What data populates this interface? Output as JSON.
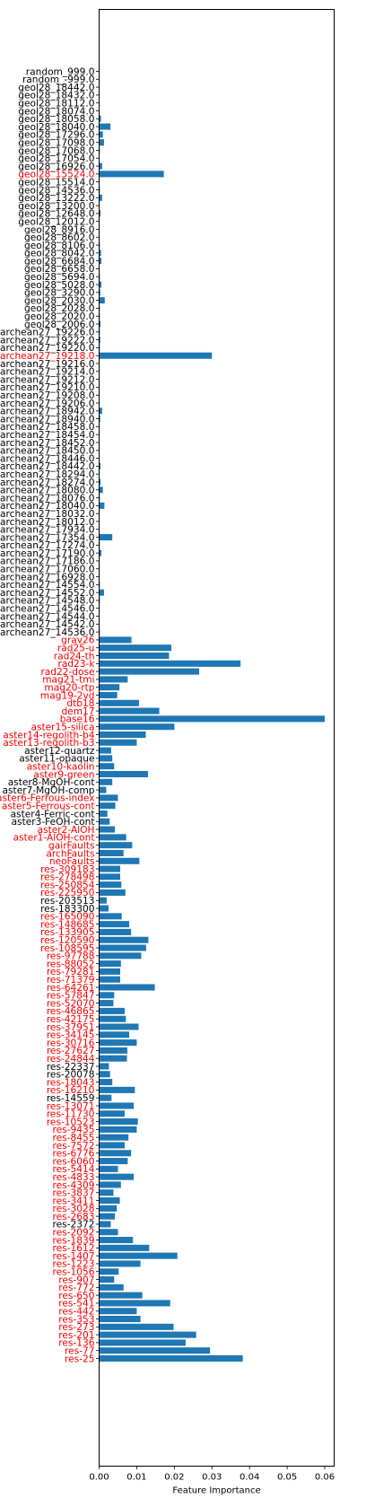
{
  "chart_data": {
    "type": "bar",
    "orientation": "horizontal",
    "title": "",
    "xlabel": "Feature Importance",
    "ylabel": "",
    "xlim": [
      0,
      0.0625
    ],
    "x_ticks": [
      0.0,
      0.01,
      0.02,
      0.03,
      0.04,
      0.05,
      0.06
    ],
    "x_tick_labels": [
      "0.00",
      "0.01",
      "0.02",
      "0.03",
      "0.04",
      "0.05",
      "0.06"
    ],
    "grid": false,
    "bar_color": "#1f77b4",
    "highlight_label_color": "#ff0000",
    "normal_label_color": "#000000",
    "categories": [
      "res-25",
      "res-77",
      "res-136",
      "res-201",
      "res-273",
      "res-353",
      "res-442",
      "res-541",
      "res-650",
      "res-772",
      "res-907",
      "res-1056",
      "res-1223",
      "res-1407",
      "res-1612",
      "res-1839",
      "res-2092",
      "res-2372",
      "res-2683",
      "res-3028",
      "res-3411",
      "res-3837",
      "res-4309",
      "res-4833",
      "res-5414",
      "res-6060",
      "res-6776",
      "res-7572",
      "res-8455",
      "res-9435",
      "res-10523",
      "res-11730",
      "res-13071",
      "res-14559",
      "res-16210",
      "res-18043",
      "res-20078",
      "res-22337",
      "res-24844",
      "res-27627",
      "res-30716",
      "res-34145",
      "res-37951",
      "res-42175",
      "res-46865",
      "res-52070",
      "res-57847",
      "res-64261",
      "res-71379",
      "res-79281",
      "res-88052",
      "res-97788",
      "res-108595",
      "res-120590",
      "res-133905",
      "res-148685",
      "res-165090",
      "res-183300",
      "res-203513",
      "res-225950",
      "res-250854",
      "res-278498",
      "res-309183",
      "neoFaults",
      "archFaults",
      "gairFaults",
      "aster1-AlOH-cont",
      "aster2-AlOH",
      "aster3-FeOH-cont",
      "aster4-Ferric-cont",
      "aster5-Ferrous-cont",
      "aster6-Ferrous-index",
      "aster7-MgOH-comp",
      "aster8-MgOH-cont",
      "aster9-green",
      "aster10-kaolin",
      "aster11-opaque",
      "aster12-quartz",
      "aster13-regolith-b3",
      "aster14-regolith-b4",
      "aster15-silica",
      "base16",
      "dem17",
      "dtb18",
      "mag19-2vd",
      "mag20-rtp",
      "mag21-tmi",
      "rad22-dose",
      "rad23-k",
      "rad24-th",
      "rad25-u",
      "grav26",
      "archean27_14536.0",
      "archean27_14542.0",
      "archean27_14544.0",
      "archean27_14546.0",
      "archean27_14548.0",
      "archean27_14552.0",
      "archean27_14554.0",
      "archean27_16928.0",
      "archean27_17060.0",
      "archean27_17186.0",
      "archean27_17190.0",
      "archean27_17274.0",
      "archean27_17354.0",
      "archean27_17934.0",
      "archean27_18012.0",
      "archean27_18032.0",
      "archean27_18040.0",
      "archean27_18076.0",
      "archean27_18080.0",
      "archean27_18274.0",
      "archean27_18294.0",
      "archean27_18442.0",
      "archean27_18446.0",
      "archean27_18450.0",
      "archean27_18452.0",
      "archean27_18454.0",
      "archean27_18458.0",
      "archean27_18940.0",
      "archean27_18942.0",
      "archean27_19206.0",
      "archean27_19208.0",
      "archean27_19210.0",
      "archean27_19212.0",
      "archean27_19214.0",
      "archean27_19216.0",
      "archean27_19218.0",
      "archean27_19220.0",
      "archean27_19222.0",
      "archean27_19226.0",
      "geol28_2006.0",
      "geol28_2020.0",
      "geol28_2028.0",
      "geol28_2030.0",
      "geol28_3290.0",
      "geol28_5028.0",
      "geol28_5694.0",
      "geol28_6658.0",
      "geol28_6684.0",
      "geol28_8042.0",
      "geol28_8106.0",
      "geol28_8602.0",
      "geol28_8916.0",
      "geol28_12012.0",
      "geol28_12648.0",
      "geol28_13200.0",
      "geol28_13222.0",
      "geol28_14536.0",
      "geol28_15514.0",
      "geol28_15524.0",
      "geol28_16926.0",
      "geol28_17054.0",
      "geol28_17068.0",
      "geol28_17098.0",
      "geol28_17296.0",
      "geol28_18040.0",
      "geol28_18058.0",
      "geol28_18074.0",
      "geol28_18112.0",
      "geol28_18432.0",
      "geol28_18442.0",
      "random_-999.0",
      "random_999.0"
    ],
    "values": [
      0.0382,
      0.0295,
      0.023,
      0.0258,
      0.0198,
      0.011,
      0.01,
      0.0189,
      0.0115,
      0.0065,
      0.004,
      0.0052,
      0.011,
      0.0208,
      0.0133,
      0.009,
      0.005,
      0.0031,
      0.0042,
      0.0047,
      0.0055,
      0.0038,
      0.0058,
      0.0092,
      0.005,
      0.0076,
      0.0085,
      0.0068,
      0.0078,
      0.01,
      0.0103,
      0.0068,
      0.0092,
      0.0033,
      0.0095,
      0.0035,
      0.0029,
      0.0026,
      0.0074,
      0.0075,
      0.01,
      0.008,
      0.0105,
      0.0071,
      0.0068,
      0.0038,
      0.004,
      0.0148,
      0.0056,
      0.0056,
      0.0058,
      0.0112,
      0.0125,
      0.0131,
      0.0085,
      0.008,
      0.006,
      0.0025,
      0.002,
      0.007,
      0.0059,
      0.0056,
      0.0056,
      0.0107,
      0.0065,
      0.0088,
      0.0072,
      0.0042,
      0.0028,
      0.0022,
      0.0043,
      0.005,
      0.0019,
      0.0035,
      0.013,
      0.004,
      0.0035,
      0.0032,
      0.01,
      0.0124,
      0.02,
      0.06,
      0.016,
      0.0106,
      0.0048,
      0.0054,
      0.0076,
      0.0266,
      0.0376,
      0.0186,
      0.0192,
      0.0086,
      0.0002,
      0.0001,
      0.0001,
      0.0001,
      0.0002,
      0.0013,
      0.0002,
      0.0001,
      0.0001,
      0.0001,
      0.0006,
      0.0002,
      0.0035,
      0.0001,
      0.0001,
      0.0001,
      0.0014,
      0.0002,
      0.001,
      0.0004,
      0.0001,
      0.0004,
      0.0001,
      0.0001,
      0.0001,
      0.0001,
      0.0001,
      0.0003,
      0.0008,
      0.0001,
      0.0001,
      0.0001,
      0.0001,
      0.0001,
      0.0001,
      0.03,
      0.0002,
      0.0003,
      0.0002,
      0.0004,
      0.0002,
      0.0002,
      0.0015,
      0.0003,
      0.0006,
      0.0002,
      0.0001,
      0.0006,
      0.0005,
      0.0002,
      0.0001,
      0.0001,
      0.0001,
      0.0004,
      0.0001,
      0.0008,
      0.0002,
      0.0001,
      0.0172,
      0.0008,
      0.0001,
      0.0002,
      0.0013,
      0.001,
      0.003,
      0.0005,
      0.0001,
      0.0001,
      0.0001,
      0.0001,
      0.0001,
      0.0001
    ],
    "highlighted": [
      "res-25",
      "res-77",
      "res-136",
      "res-201",
      "res-273",
      "res-353",
      "res-442",
      "res-541",
      "res-650",
      "res-772",
      "res-907",
      "res-1056",
      "res-1223",
      "res-1407",
      "res-1612",
      "res-1839",
      "res-2092",
      "res-2683",
      "res-3028",
      "res-3411",
      "res-3837",
      "res-4309",
      "res-4833",
      "res-5414",
      "res-6060",
      "res-6776",
      "res-7572",
      "res-8455",
      "res-9435",
      "res-10523",
      "res-11730",
      "res-13071",
      "res-16210",
      "res-18043",
      "res-24844",
      "res-27627",
      "res-30716",
      "res-34145",
      "res-37951",
      "res-42175",
      "res-46865",
      "res-52070",
      "res-57847",
      "res-64261",
      "res-71379",
      "res-79281",
      "res-88052",
      "res-97788",
      "res-108595",
      "res-120590",
      "res-133905",
      "res-148685",
      "res-165090",
      "res-225950",
      "res-250854",
      "res-278498",
      "res-309183",
      "neoFaults",
      "archFaults",
      "gairFaults",
      "aster1-AlOH-cont",
      "aster2-AlOH",
      "aster5-Ferrous-cont",
      "aster6-Ferrous-index",
      "aster9-green",
      "aster10-kaolin",
      "aster13-regolith-b3",
      "aster14-regolith-b4",
      "aster15-silica",
      "base16",
      "dem17",
      "dtb18",
      "mag19-2vd",
      "mag20-rtp",
      "mag21-tmi",
      "rad22-dose",
      "rad23-k",
      "rad24-th",
      "rad25-u",
      "grav26",
      "archean27_19218.0",
      "geol28_15524.0"
    ]
  }
}
